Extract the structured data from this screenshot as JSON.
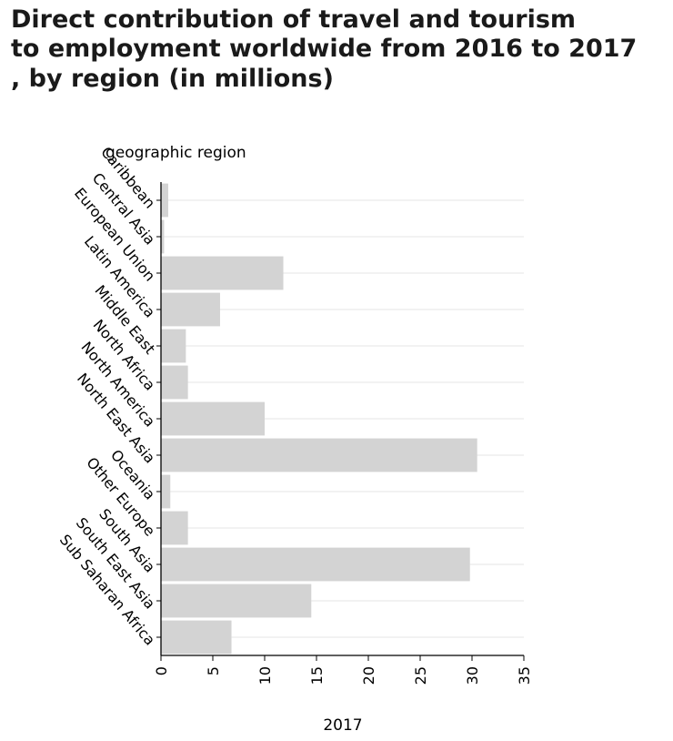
{
  "chart_data": {
    "type": "bar",
    "orientation": "horizontal",
    "title": "Direct contribution of travel and tourism\nto employment worldwide from 2016 to 2017\n, by region (in millions)",
    "xlabel": "2017",
    "ylabel": "geographic region",
    "categories": [
      "Caribbean",
      "Central Asia",
      "European Union",
      "Latin America",
      "Middle East",
      "North Africa",
      "North America",
      "North East Asia",
      "Oceania",
      "Other Europe",
      "South Asia",
      "South East Asia",
      "Sub Saharan Africa"
    ],
    "values": [
      0.7,
      0.3,
      11.8,
      5.7,
      2.4,
      2.6,
      10.0,
      30.5,
      0.9,
      2.6,
      29.8,
      14.5,
      6.8
    ],
    "xlim": [
      0,
      35
    ],
    "xticks": [
      0,
      5,
      10,
      15,
      20,
      25,
      30,
      35
    ],
    "grid": true,
    "bar_color": "#d3d3d3",
    "grid_color": "#e6e6e6"
  }
}
